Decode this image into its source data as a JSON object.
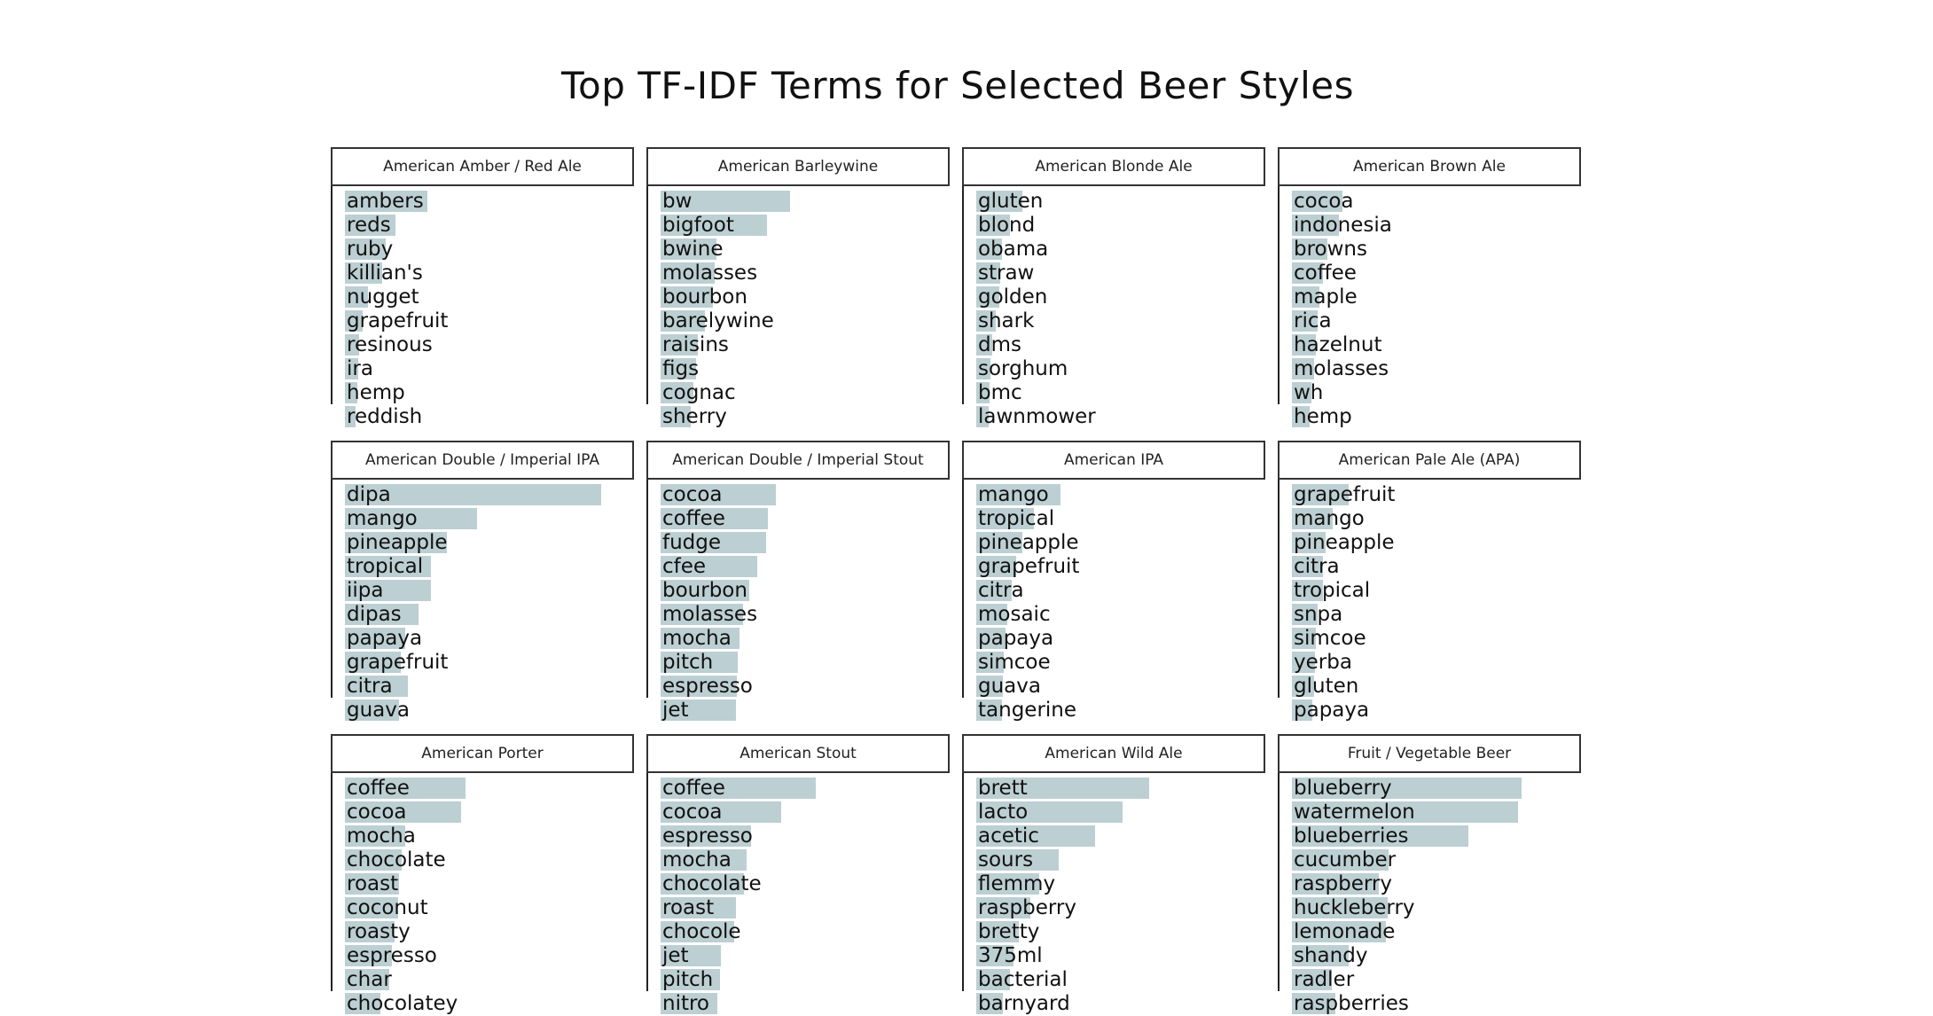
{
  "chart_data": {
    "type": "bar",
    "title": "Top TF-IDF Terms for Selected Beer Styles",
    "facets": [
      {
        "name": "American Amber / Red Ale",
        "terms": [
          "ambers",
          "reds",
          "ruby",
          "killian's",
          "nugget",
          "grapefruit",
          "resinous",
          "ira",
          "hemp",
          "reddish"
        ],
        "values": [
          0.068,
          0.042,
          0.034,
          0.031,
          0.019,
          0.015,
          0.012,
          0.011,
          0.01,
          0.009
        ]
      },
      {
        "name": "American Barleywine",
        "terms": [
          "bw",
          "bigfoot",
          "bwine",
          "molasses",
          "bourbon",
          "barelywine",
          "raisins",
          "figs",
          "cognac",
          "sherry"
        ],
        "values": [
          0.107,
          0.088,
          0.046,
          0.045,
          0.043,
          0.037,
          0.031,
          0.029,
          0.027,
          0.025
        ]
      },
      {
        "name": "American Blonde Ale",
        "terms": [
          "gluten",
          "blond",
          "obama",
          "straw",
          "golden",
          "shark",
          "dms",
          "sorghum",
          "bmc",
          "lawnmower"
        ],
        "values": [
          0.038,
          0.028,
          0.021,
          0.02,
          0.019,
          0.016,
          0.013,
          0.012,
          0.011,
          0.01
        ]
      },
      {
        "name": "American Brown Ale",
        "terms": [
          "cocoa",
          "indonesia",
          "browns",
          "coffee",
          "maple",
          "rica",
          "hazelnut",
          "molasses",
          "wh",
          "hemp"
        ],
        "values": [
          0.042,
          0.039,
          0.029,
          0.026,
          0.023,
          0.021,
          0.02,
          0.018,
          0.016,
          0.015
        ]
      },
      {
        "name": "American Double / Imperial IPA",
        "terms": [
          "dipa",
          "mango",
          "pineapple",
          "tropical",
          "iipa",
          "dipas",
          "papaya",
          "grapefruit",
          "citra",
          "guava"
        ],
        "values": [
          0.212,
          0.109,
          0.084,
          0.071,
          0.071,
          0.061,
          0.05,
          0.046,
          0.052,
          0.045
        ]
      },
      {
        "name": "American Double / Imperial Stout",
        "terms": [
          "cocoa",
          "coffee",
          "fudge",
          "cfee",
          "bourbon",
          "molasses",
          "mocha",
          "pitch",
          "espresso",
          "jet"
        ],
        "values": [
          0.095,
          0.089,
          0.087,
          0.08,
          0.073,
          0.068,
          0.065,
          0.064,
          0.063,
          0.062
        ]
      },
      {
        "name": "American IPA",
        "terms": [
          "mango",
          "tropical",
          "pineapple",
          "grapefruit",
          "citra",
          "mosaic",
          "papaya",
          "simcoe",
          "guava",
          "tangerine"
        ],
        "values": [
          0.07,
          0.048,
          0.038,
          0.033,
          0.029,
          0.026,
          0.024,
          0.023,
          0.022,
          0.021
        ]
      },
      {
        "name": "American Pale Ale (APA)",
        "terms": [
          "grapefruit",
          "mango",
          "pineapple",
          "citra",
          "tropical",
          "snpa",
          "simcoe",
          "yerba",
          "gluten",
          "papaya"
        ],
        "values": [
          0.047,
          0.034,
          0.028,
          0.026,
          0.026,
          0.021,
          0.02,
          0.019,
          0.018,
          0.017
        ]
      },
      {
        "name": "American Porter",
        "terms": [
          "coffee",
          "cocoa",
          "mocha",
          "chocolate",
          "roast",
          "coconut",
          "roasty",
          "espresso",
          "char",
          "chocolatey"
        ],
        "values": [
          0.1,
          0.096,
          0.05,
          0.047,
          0.045,
          0.044,
          0.041,
          0.039,
          0.037,
          0.029
        ]
      },
      {
        "name": "American Stout",
        "terms": [
          "coffee",
          "cocoa",
          "espresso",
          "mocha",
          "chocolate",
          "roast",
          "chocole",
          "jet",
          "pitch",
          "nitro"
        ],
        "values": [
          0.128,
          0.1,
          0.075,
          0.071,
          0.069,
          0.062,
          0.061,
          0.05,
          0.049,
          0.047
        ]
      },
      {
        "name": "American Wild Ale",
        "terms": [
          "brett",
          "lacto",
          "acetic",
          "sours",
          "flemmy",
          "raspberry",
          "bretty",
          "375ml",
          "bacterial",
          "barnyard"
        ],
        "values": [
          0.143,
          0.121,
          0.098,
          0.068,
          0.052,
          0.045,
          0.035,
          0.031,
          0.028,
          0.022
        ]
      },
      {
        "name": "Fruit / Vegetable Beer",
        "terms": [
          "blueberry",
          "watermelon",
          "blueberries",
          "cucumber",
          "raspberry",
          "huckleberry",
          "lemonade",
          "shandy",
          "radler",
          "raspberries"
        ],
        "values": [
          0.19,
          0.187,
          0.146,
          0.08,
          0.072,
          0.079,
          0.078,
          0.047,
          0.033,
          0.036
        ]
      }
    ],
    "bar_color": "#bccfd2",
    "xlim": [
      0,
      0.22
    ],
    "grid": false,
    "legend": "none"
  }
}
